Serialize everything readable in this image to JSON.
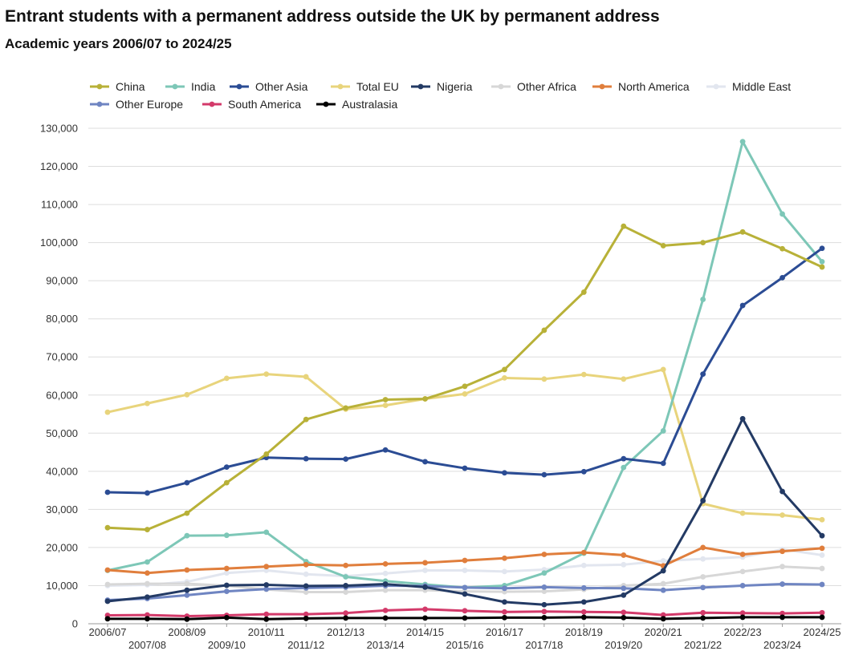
{
  "chart_data": {
    "type": "line",
    "title": "Entrant students with a permanent address outside the UK by permanent address",
    "subtitle": "Academic years 2006/07 to 2024/25",
    "xlabel": "",
    "ylabel": "",
    "ylim": [
      0,
      130000
    ],
    "yticks": [
      0,
      10000,
      20000,
      30000,
      40000,
      50000,
      60000,
      70000,
      80000,
      90000,
      100000,
      110000,
      120000,
      130000
    ],
    "ytick_labels": [
      "0",
      "10,000",
      "20,000",
      "30,000",
      "40,000",
      "50,000",
      "60,000",
      "70,000",
      "80,000",
      "90,000",
      "100,000",
      "110,000",
      "120,000",
      "130,000"
    ],
    "grid": true,
    "legend_position": "top-left",
    "categories": [
      "2006/07",
      "2007/08",
      "2008/09",
      "2009/10",
      "2010/11",
      "2011/12",
      "2012/13",
      "2013/14",
      "2014/15",
      "2015/16",
      "2016/17",
      "2017/18",
      "2018/19",
      "2019/20",
      "2020/21",
      "2021/22",
      "2022/23",
      "2023/24",
      "2024/25"
    ],
    "series": [
      {
        "name": "Middle East",
        "color": "#e2e6ef",
        "values": [
          10000,
          10200,
          11000,
          13300,
          14000,
          13000,
          12500,
          13200,
          14000,
          14000,
          13700,
          14200,
          15300,
          15500,
          16500,
          17000,
          17500,
          19500,
          18000
        ]
      },
      {
        "name": "Other Africa",
        "color": "#d7d7d7",
        "values": [
          10300,
          10500,
          10500,
          10000,
          9000,
          8300,
          8300,
          8800,
          8800,
          8500,
          8400,
          8500,
          9000,
          10000,
          10500,
          12300,
          13700,
          15000,
          14500
        ]
      },
      {
        "name": "Total EU",
        "color": "#e8d47c",
        "values": [
          55500,
          57800,
          60100,
          64400,
          65500,
          64800,
          56300,
          57300,
          59000,
          60300,
          64500,
          64200,
          65400,
          64200,
          66700,
          31500,
          29000,
          28500,
          27300
        ]
      },
      {
        "name": "India",
        "color": "#7dc7b7",
        "values": [
          14000,
          16200,
          23100,
          23200,
          24000,
          16300,
          12300,
          11200,
          10300,
          9500,
          10000,
          13300,
          18500,
          41000,
          50600,
          85100,
          126500,
          107500,
          95000
        ]
      },
      {
        "name": "North America",
        "color": "#e07e3c",
        "values": [
          14100,
          13300,
          14100,
          14500,
          15000,
          15500,
          15300,
          15700,
          16000,
          16600,
          17200,
          18200,
          18700,
          18000,
          15200,
          20000,
          18200,
          19000,
          19800
        ]
      },
      {
        "name": "Other Europe",
        "color": "#6f85c2",
        "values": [
          6200,
          6600,
          7500,
          8500,
          9100,
          9400,
          9600,
          10000,
          9900,
          9500,
          9300,
          9600,
          9400,
          9300,
          8800,
          9500,
          10000,
          10400,
          10300
        ]
      },
      {
        "name": "South America",
        "color": "#d33a6a",
        "values": [
          2200,
          2300,
          2000,
          2200,
          2500,
          2500,
          2800,
          3500,
          3800,
          3400,
          3100,
          3200,
          3100,
          3000,
          2300,
          2900,
          2800,
          2700,
          2900
        ]
      },
      {
        "name": "Australasia",
        "color": "#000000",
        "values": [
          1300,
          1300,
          1200,
          1600,
          1200,
          1400,
          1500,
          1500,
          1500,
          1500,
          1600,
          1600,
          1700,
          1600,
          1300,
          1500,
          1700,
          1700,
          1700
        ]
      },
      {
        "name": "Nigeria",
        "color": "#233a64",
        "values": [
          5900,
          7000,
          8800,
          10100,
          10200,
          9900,
          10000,
          10400,
          9600,
          7800,
          5700,
          5000,
          5700,
          7500,
          13900,
          32300,
          53800,
          34700,
          23100
        ]
      },
      {
        "name": "Other Asia",
        "color": "#2b4c94",
        "values": [
          34500,
          34300,
          37000,
          41100,
          43600,
          43300,
          43200,
          45600,
          42500,
          40800,
          39600,
          39100,
          39900,
          43300,
          42100,
          65500,
          83500,
          90800,
          98500
        ]
      },
      {
        "name": "China",
        "color": "#b8b138",
        "values": [
          25200,
          24700,
          29000,
          37000,
          44500,
          53600,
          56600,
          58800,
          59000,
          62300,
          66700,
          77000,
          87000,
          104300,
          99200,
          100000,
          102800,
          98400,
          93600
        ]
      }
    ],
    "legend_order": [
      "China",
      "India",
      "Other Asia",
      "Total EU",
      "Nigeria",
      "Other Africa",
      "North America",
      "Middle East",
      "Other Europe",
      "South America",
      "Australasia"
    ]
  }
}
